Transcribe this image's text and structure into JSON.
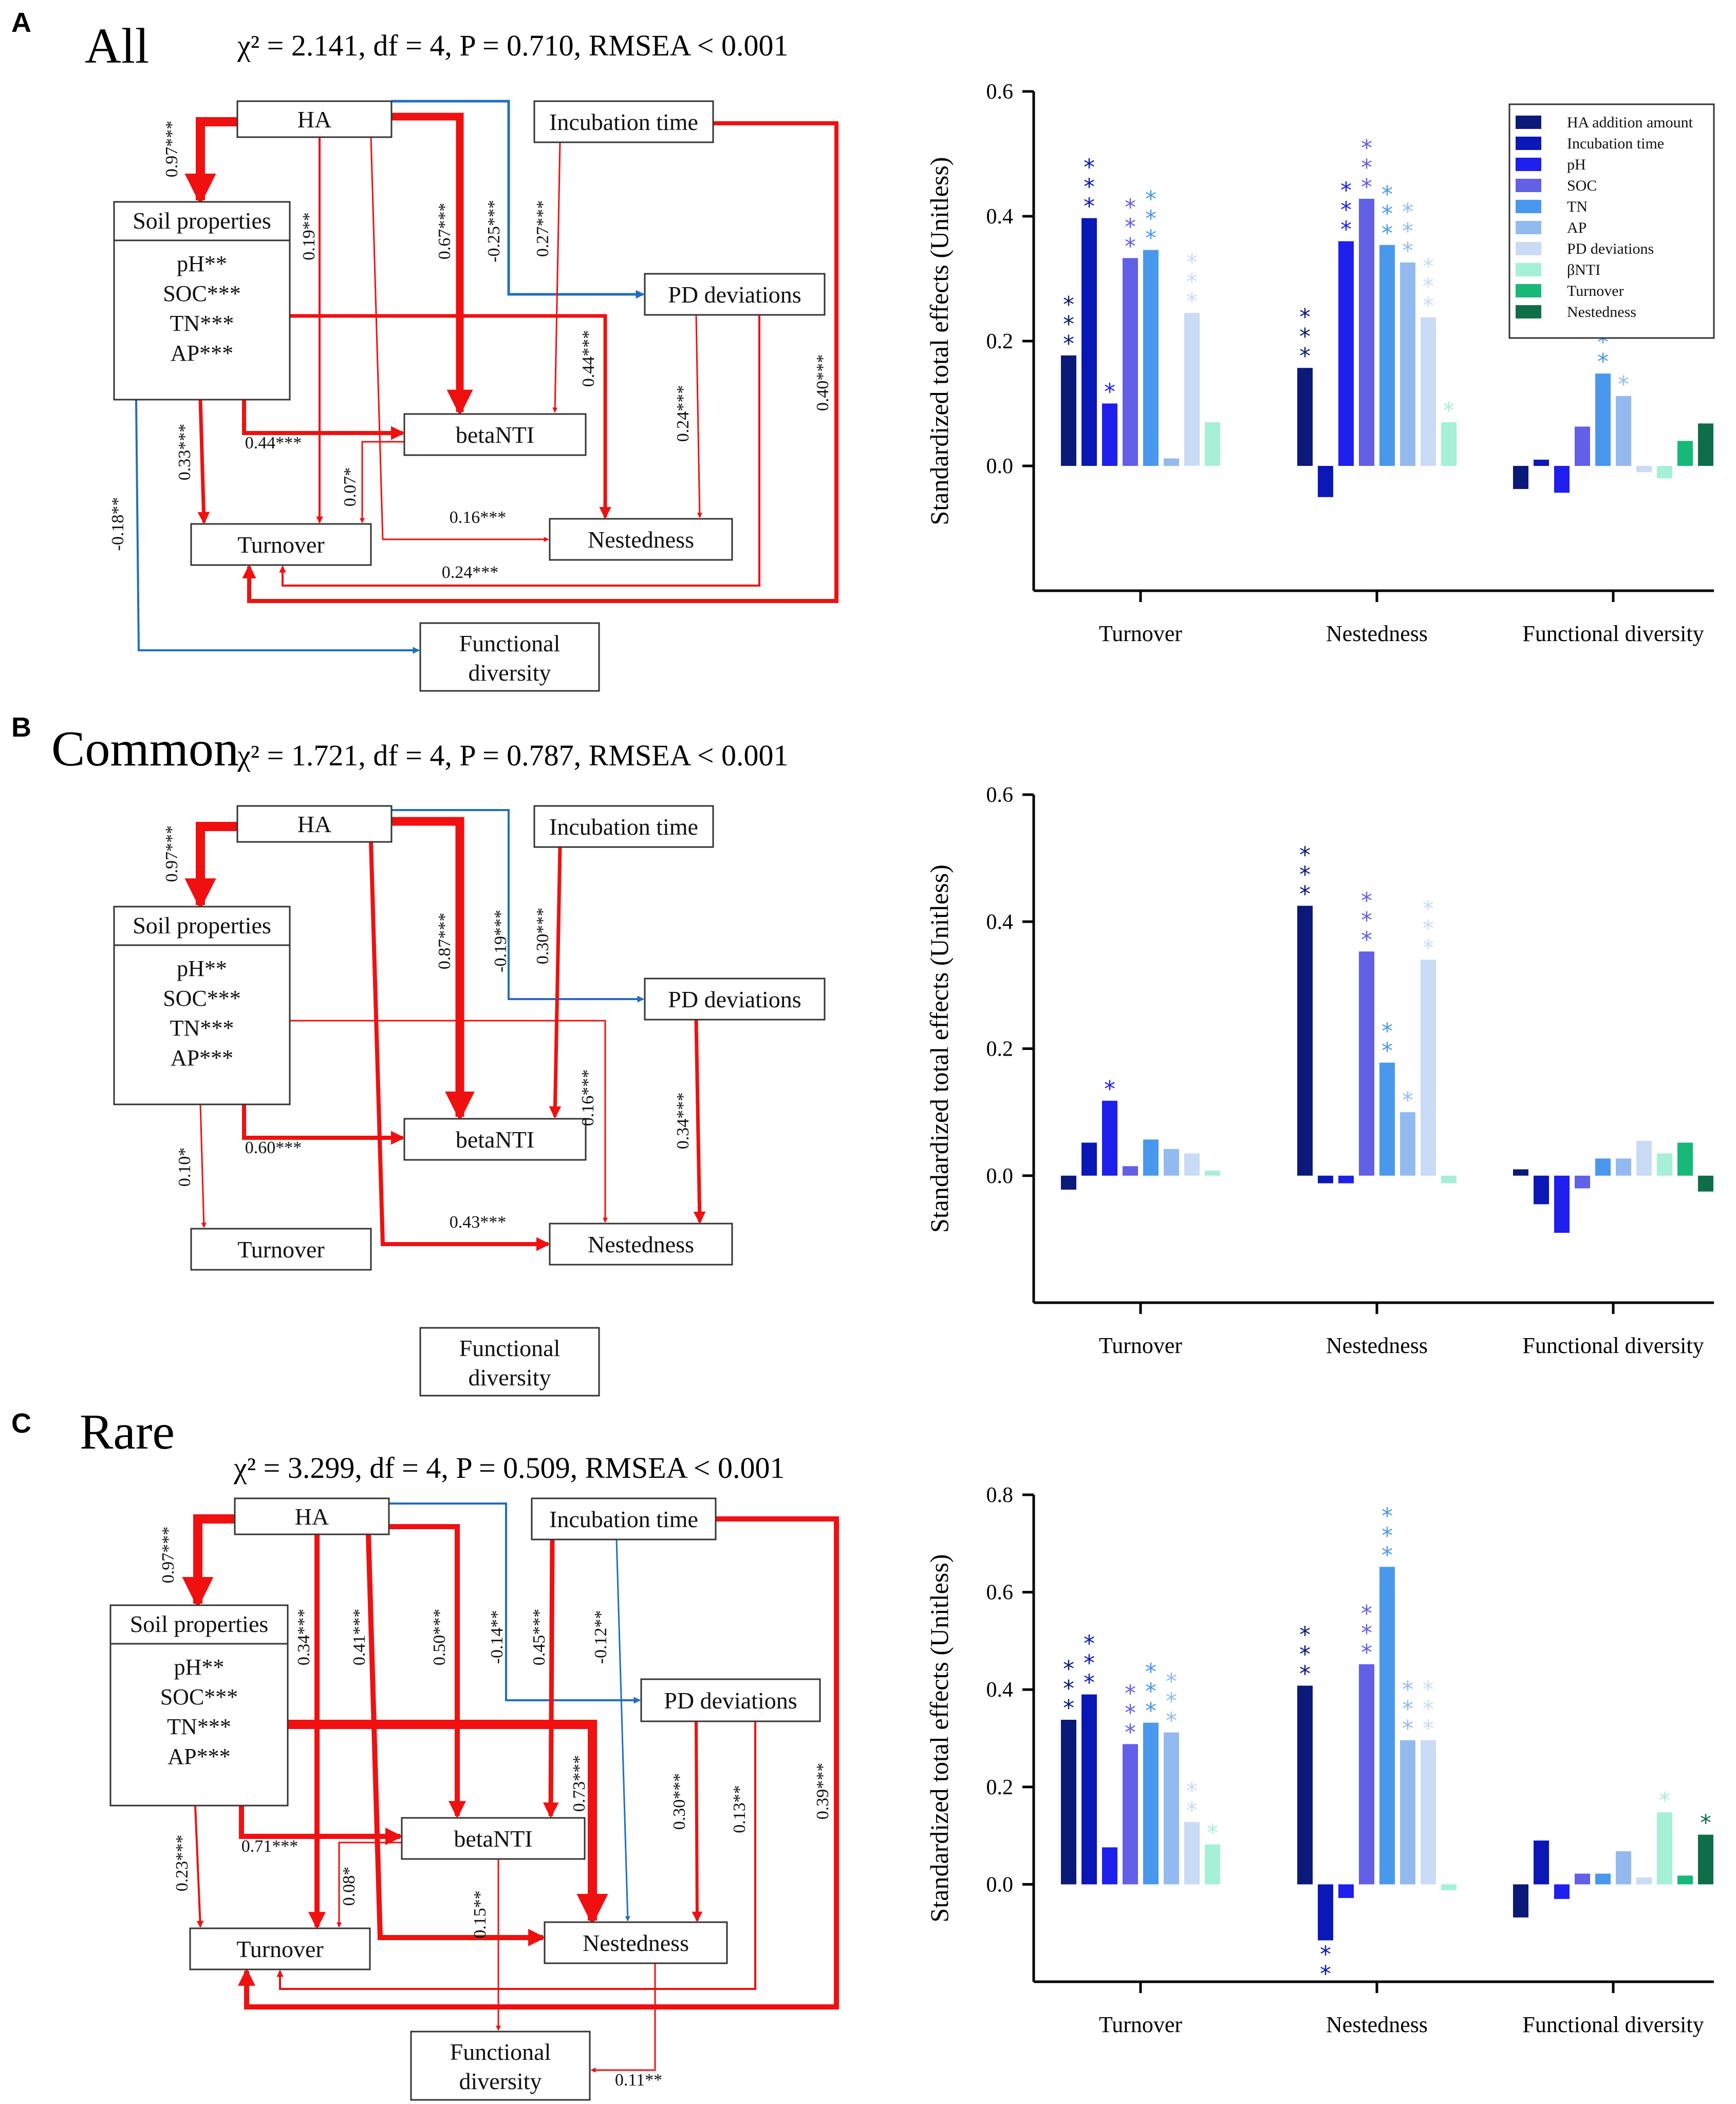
{
  "panels": [
    {
      "label": "A",
      "title": "All",
      "stats": "χ² = 2.141,  df = 4, P = 0.710, RMSEA < 0.001",
      "nodes": {
        "ha": "HA",
        "incubation": "Incubation time",
        "soil_title": "Soil properties",
        "soil_vars": [
          "pH**",
          "SOC***",
          "TN***",
          "AP***"
        ],
        "pd": "PD deviations",
        "betanti": "betaNTI",
        "turnover": "Turnover",
        "nestedness": "Nestedness",
        "functional": [
          "Functional",
          "diversity"
        ]
      },
      "paths": [
        {
          "from": "HA",
          "to": "Soil properties",
          "coef": "0.97***",
          "sign": "positive"
        },
        {
          "from": "HA",
          "to": "Turnover",
          "coef": "0.19**",
          "sign": "positive"
        },
        {
          "from": "HA",
          "to": "betaNTI",
          "coef": "0.67***",
          "sign": "positive"
        },
        {
          "from": "HA",
          "to": "PD deviations",
          "coef": "-0.25***",
          "sign": "negative"
        },
        {
          "from": "HA",
          "to": "Nestedness",
          "coef": "0.16***",
          "sign": "positive"
        },
        {
          "from": "Incubation time",
          "to": "betaNTI",
          "coef": "0.27***",
          "sign": "positive"
        },
        {
          "from": "Incubation time",
          "to": "Turnover",
          "coef": "0.40***",
          "sign": "positive"
        },
        {
          "from": "Soil properties",
          "to": "Nestedness",
          "coef": "0.44***",
          "sign": "positive"
        },
        {
          "from": "Soil properties",
          "to": "betaNTI",
          "coef": "0.44***",
          "sign": "positive"
        },
        {
          "from": "Soil properties",
          "to": "Turnover",
          "coef": "0.33***",
          "sign": "positive"
        },
        {
          "from": "Soil properties",
          "to": "Functional diversity",
          "coef": "-0.18**",
          "sign": "negative"
        },
        {
          "from": "betaNTI",
          "to": "Turnover",
          "coef": "0.07*",
          "sign": "positive"
        },
        {
          "from": "PD deviations",
          "to": "Nestedness",
          "coef": "0.24***",
          "sign": "positive"
        },
        {
          "from": "PD deviations",
          "to": "Turnover",
          "coef": "0.24***",
          "sign": "positive"
        }
      ]
    },
    {
      "label": "B",
      "title": "Common",
      "stats": "χ² = 1.721,  df = 4, P = 0.787, RMSEA < 0.001",
      "nodes": {
        "ha": "HA",
        "incubation": "Incubation time",
        "soil_title": "Soil properties",
        "soil_vars": [
          "pH**",
          "SOC***",
          "TN***",
          "AP***"
        ],
        "pd": "PD deviations",
        "betanti": "betaNTI",
        "turnover": "Turnover",
        "nestedness": "Nestedness",
        "functional": [
          "Functional",
          "diversity"
        ]
      },
      "paths": [
        {
          "from": "HA",
          "to": "Soil properties",
          "coef": "0.97***",
          "sign": "positive"
        },
        {
          "from": "HA",
          "to": "betaNTI",
          "coef": "0.87***",
          "sign": "positive"
        },
        {
          "from": "HA",
          "to": "PD deviations",
          "coef": "-0.19***",
          "sign": "negative"
        },
        {
          "from": "HA",
          "to": "Nestedness",
          "coef": "0.43***",
          "sign": "positive"
        },
        {
          "from": "Incubation time",
          "to": "betaNTI",
          "coef": "0.30***",
          "sign": "positive"
        },
        {
          "from": "Soil properties",
          "to": "Nestedness",
          "coef": "0.16***",
          "sign": "positive"
        },
        {
          "from": "Soil properties",
          "to": "betaNTI",
          "coef": "0.60***",
          "sign": "positive"
        },
        {
          "from": "Soil properties",
          "to": "Turnover",
          "coef": "0.10*",
          "sign": "positive"
        },
        {
          "from": "PD deviations",
          "to": "Nestedness",
          "coef": "0.34***",
          "sign": "positive"
        }
      ]
    },
    {
      "label": "C",
      "title": "Rare",
      "stats": "χ² = 3.299,  df = 4, P = 0.509, RMSEA < 0.001",
      "nodes": {
        "ha": "HA",
        "incubation": "Incubation time",
        "soil_title": "Soil properties",
        "soil_vars": [
          "pH**",
          "SOC***",
          "TN***",
          "AP***"
        ],
        "pd": "PD deviations",
        "betanti": "betaNTI",
        "turnover": "Turnover",
        "nestedness": "Nestedness",
        "functional": [
          "Functional",
          "diversity"
        ]
      },
      "paths": [
        {
          "from": "HA",
          "to": "Soil properties",
          "coef": "0.97***",
          "sign": "positive"
        },
        {
          "from": "HA",
          "to": "Turnover",
          "coef": "0.34***",
          "sign": "positive"
        },
        {
          "from": "HA",
          "to": "Nestedness",
          "coef": "0.41***",
          "sign": "positive"
        },
        {
          "from": "HA",
          "to": "betaNTI",
          "coef": "0.50***",
          "sign": "positive"
        },
        {
          "from": "HA",
          "to": "PD deviations",
          "coef": "-0.14**",
          "sign": "negative"
        },
        {
          "from": "Incubation time",
          "to": "betaNTI",
          "coef": "0.45***",
          "sign": "positive"
        },
        {
          "from": "Incubation time",
          "to": "Nestedness",
          "coef": "-0.12**",
          "sign": "negative"
        },
        {
          "from": "Incubation time",
          "to": "Turnover",
          "coef": "0.39***",
          "sign": "positive"
        },
        {
          "from": "Soil properties",
          "to": "Nestedness",
          "coef": "0.73***",
          "sign": "positive"
        },
        {
          "from": "Soil properties",
          "to": "betaNTI",
          "coef": "0.71***",
          "sign": "positive"
        },
        {
          "from": "Soil properties",
          "to": "Turnover",
          "coef": "0.23***",
          "sign": "positive"
        },
        {
          "from": "betaNTI",
          "to": "Turnover",
          "coef": "0.08*",
          "sign": "positive"
        },
        {
          "from": "betaNTI",
          "to": "Functional diversity",
          "coef": "0.15**",
          "sign": "positive"
        },
        {
          "from": "PD deviations",
          "to": "Nestedness",
          "coef": "0.30***",
          "sign": "positive"
        },
        {
          "from": "PD deviations",
          "to": "Turnover",
          "coef": "0.13**",
          "sign": "positive"
        },
        {
          "from": "Nestedness",
          "to": "Functional diversity",
          "coef": "0.11**",
          "sign": "positive"
        }
      ]
    }
  ],
  "chart_data": [
    {
      "panel": "A",
      "type": "bar",
      "ylabel": "Standardized total effects (Unitless)",
      "ylim": [
        -0.2,
        0.6
      ],
      "yticks": [
        "0.0",
        "0.2",
        "0.4",
        "0.6"
      ],
      "yticks_values": [
        0,
        0.2,
        0.4,
        0.6
      ],
      "categories": [
        "Turnover",
        "Nestedness",
        "Functional diversity"
      ],
      "series": [
        {
          "name": "HA addition amount",
          "color": "#0b1a78",
          "values": [
            0.177,
            0.157,
            -0.037
          ],
          "stars": [
            "***",
            "***",
            ""
          ]
        },
        {
          "name": "Incubation time",
          "color": "#0a18b8",
          "values": [
            0.397,
            -0.05,
            0.01
          ],
          "stars": [
            "***",
            "",
            ""
          ]
        },
        {
          "name": "pH",
          "color": "#1f1fee",
          "values": [
            0.1,
            0.36,
            -0.043
          ],
          "stars": [
            "*",
            "***",
            ""
          ]
        },
        {
          "name": "SOC",
          "color": "#6160e6",
          "values": [
            0.333,
            0.428,
            0.063
          ],
          "stars": [
            "***",
            "***",
            ""
          ]
        },
        {
          "name": "TN",
          "color": "#4a98ee",
          "values": [
            0.346,
            0.354,
            0.148
          ],
          "stars": [
            "***",
            "***",
            "**"
          ]
        },
        {
          "name": "AP",
          "color": "#93baf0",
          "values": [
            0.012,
            0.326,
            0.112
          ],
          "stars": [
            "",
            "***",
            "*"
          ]
        },
        {
          "name": "PD deviations",
          "color": "#c9dbf5",
          "values": [
            0.245,
            0.238,
            -0.01
          ],
          "stars": [
            "***",
            "***",
            ""
          ]
        },
        {
          "name": "βNTI",
          "color": "#a6f0d8",
          "values": [
            0.07,
            0.07,
            -0.02
          ],
          "stars": [
            "",
            "*",
            ""
          ]
        },
        {
          "name": "Turnover",
          "color": "#17b878",
          "values": [
            null,
            null,
            0.04
          ],
          "stars": [
            "",
            "",
            ""
          ]
        },
        {
          "name": "Nestedness",
          "color": "#0e6e48",
          "values": [
            null,
            null,
            0.068
          ],
          "stars": [
            "",
            "",
            ""
          ]
        }
      ]
    },
    {
      "panel": "B",
      "type": "bar",
      "ylabel": "Standardized total effects (Unitless)",
      "ylim": [
        -0.2,
        0.6
      ],
      "yticks": [
        "0.0",
        "0.2",
        "0.4",
        "0.6"
      ],
      "yticks_values": [
        0,
        0.2,
        0.4,
        0.6
      ],
      "categories": [
        "Turnover",
        "Nestedness",
        "Functional diversity"
      ],
      "series": [
        {
          "name": "HA addition amount",
          "color": "#0b1a78",
          "values": [
            -0.022,
            0.425,
            0.01
          ],
          "stars": [
            "",
            "***",
            ""
          ]
        },
        {
          "name": "Incubation time",
          "color": "#0a18b8",
          "values": [
            0.052,
            -0.012,
            -0.045
          ],
          "stars": [
            "",
            "",
            ""
          ]
        },
        {
          "name": "pH",
          "color": "#1f1fee",
          "values": [
            0.118,
            -0.012,
            -0.09
          ],
          "stars": [
            "*",
            "",
            ""
          ]
        },
        {
          "name": "SOC",
          "color": "#6160e6",
          "values": [
            0.015,
            0.353,
            -0.02
          ],
          "stars": [
            "",
            "***",
            ""
          ]
        },
        {
          "name": "TN",
          "color": "#4a98ee",
          "values": [
            0.057,
            0.178,
            0.027
          ],
          "stars": [
            "",
            "**",
            ""
          ]
        },
        {
          "name": "AP",
          "color": "#93baf0",
          "values": [
            0.042,
            0.1,
            0.027
          ],
          "stars": [
            "",
            "*",
            ""
          ]
        },
        {
          "name": "PD deviations",
          "color": "#c9dbf5",
          "values": [
            0.035,
            0.34,
            0.055
          ],
          "stars": [
            "",
            "***",
            ""
          ]
        },
        {
          "name": "βNTI",
          "color": "#a6f0d8",
          "values": [
            0.008,
            -0.012,
            0.035
          ],
          "stars": [
            "",
            "",
            ""
          ]
        },
        {
          "name": "Turnover",
          "color": "#17b878",
          "values": [
            null,
            null,
            0.052
          ],
          "stars": [
            "",
            "",
            ""
          ]
        },
        {
          "name": "Nestedness",
          "color": "#0e6e48",
          "values": [
            null,
            null,
            -0.025
          ],
          "stars": [
            "",
            "",
            ""
          ]
        }
      ]
    },
    {
      "panel": "C",
      "type": "bar",
      "ylabel": "Standardized total effects (Unitless)",
      "ylim": [
        -0.2,
        0.8
      ],
      "yticks": [
        "0.0",
        "0.2",
        "0.4",
        "0.6",
        "0.8"
      ],
      "yticks_values": [
        0,
        0.2,
        0.4,
        0.6,
        0.8
      ],
      "categories": [
        "Turnover",
        "Nestedness",
        "Functional diversity"
      ],
      "series": [
        {
          "name": "HA addition amount",
          "color": "#0b1a78",
          "values": [
            0.338,
            0.408,
            -0.068
          ],
          "stars": [
            "***",
            "***",
            ""
          ]
        },
        {
          "name": "Incubation time",
          "color": "#0a18b8",
          "values": [
            0.39,
            -0.115,
            0.09
          ],
          "stars": [
            "***",
            "**",
            ""
          ]
        },
        {
          "name": "pH",
          "color": "#1f1fee",
          "values": [
            0.076,
            -0.028,
            -0.03
          ],
          "stars": [
            "",
            "",
            ""
          ]
        },
        {
          "name": "SOC",
          "color": "#6160e6",
          "values": [
            0.288,
            0.452,
            0.022
          ],
          "stars": [
            "***",
            "***",
            ""
          ]
        },
        {
          "name": "TN",
          "color": "#4a98ee",
          "values": [
            0.332,
            0.652,
            0.022
          ],
          "stars": [
            "***",
            "***",
            ""
          ]
        },
        {
          "name": "AP",
          "color": "#93baf0",
          "values": [
            0.312,
            0.296,
            0.068
          ],
          "stars": [
            "***",
            "***",
            ""
          ]
        },
        {
          "name": "PD deviations",
          "color": "#c9dbf5",
          "values": [
            0.128,
            0.296,
            0.014
          ],
          "stars": [
            "**",
            "***",
            ""
          ]
        },
        {
          "name": "βNTI",
          "color": "#a6f0d8",
          "values": [
            0.082,
            -0.012,
            0.148
          ],
          "stars": [
            "*",
            "",
            "*"
          ]
        },
        {
          "name": "Turnover",
          "color": "#17b878",
          "values": [
            null,
            null,
            0.018
          ],
          "stars": [
            "",
            "",
            ""
          ]
        },
        {
          "name": "Nestedness",
          "color": "#0e6e48",
          "values": [
            null,
            null,
            0.102
          ],
          "stars": [
            "",
            "",
            "*"
          ]
        }
      ]
    }
  ]
}
